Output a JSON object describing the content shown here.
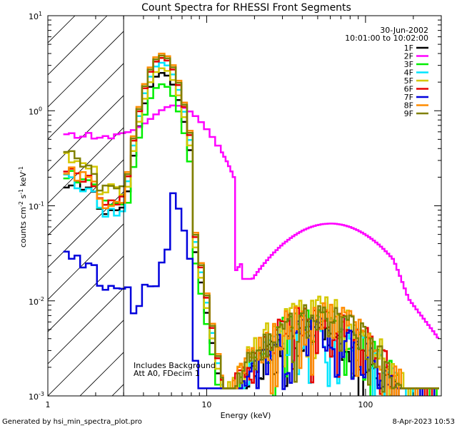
{
  "chart_data": {
    "type": "line",
    "title": "Count Spectra for RHESSI Front Segments",
    "xlabel": "Energy (keV)",
    "ylabel_main": "counts cm",
    "ylabel_sup1": "-2",
    "ylabel_mid1": " s",
    "ylabel_sup2": "-1",
    "ylabel_mid2": " keV",
    "ylabel_sup3": "-1",
    "xscale": "log",
    "yscale": "log",
    "xlim": [
      1,
      300
    ],
    "ylim": [
      0.001,
      10
    ],
    "x_tick_labels": [
      {
        "value": 10,
        "label": "10"
      },
      {
        "value": 100,
        "label": "100"
      }
    ],
    "x_tick_label_one": "1",
    "y_tick_labels": [
      {
        "value": 10,
        "base": "10",
        "exp": "1"
      },
      {
        "value": 1,
        "base": "10",
        "exp": "0"
      },
      {
        "value": 0.1,
        "base": "10",
        "exp": "-1"
      },
      {
        "value": 0.01,
        "base": "10",
        "exp": "-2"
      },
      {
        "value": 0.001,
        "base": "10",
        "exp": "-3"
      }
    ],
    "hatched_region": {
      "x_from": 1,
      "x_to": 3
    },
    "date": "30-Jun-2002",
    "time_range": "10:01:00 to 10:02:00",
    "annotations": [
      "Includes Background",
      "Att A0, FDecim 1"
    ],
    "footer_left": "Generated by hsi_min_spectra_plot.pro",
    "footer_right": "8-Apr-2023 10:53",
    "segments": [
      {
        "name": "1F",
        "color": "#000000",
        "y3": 0.085,
        "peak": 2.5,
        "yhigh": 0.0045
      },
      {
        "name": "2F",
        "color": "#ff00ff",
        "y3": 0.55,
        "peak": 1.1,
        "yhigh": 0.05
      },
      {
        "name": "3F",
        "color": "#00ee00",
        "y3": 0.1,
        "peak": 1.9,
        "yhigh": 0.006
      },
      {
        "name": "4F",
        "color": "#00e5ff",
        "y3": 0.09,
        "peak": 3.2,
        "yhigh": 0.0055
      },
      {
        "name": "5F",
        "color": "#d4c800",
        "y3": 0.15,
        "peak": 2.8,
        "yhigh": 0.0075
      },
      {
        "name": "6F",
        "color": "#e60000",
        "y3": 0.11,
        "peak": 3.6,
        "yhigh": 0.0065
      },
      {
        "name": "7F",
        "color": "#0000dd",
        "y3": 0.014,
        "peak": 0.18,
        "yhigh": 0.0045
      },
      {
        "name": "8F",
        "color": "#ff8c00",
        "y3": 0.11,
        "peak": 4.0,
        "yhigh": 0.007
      },
      {
        "name": "9F",
        "color": "#808000",
        "y3": 0.16,
        "peak": 3.8,
        "yhigh": 0.0065
      }
    ]
  }
}
